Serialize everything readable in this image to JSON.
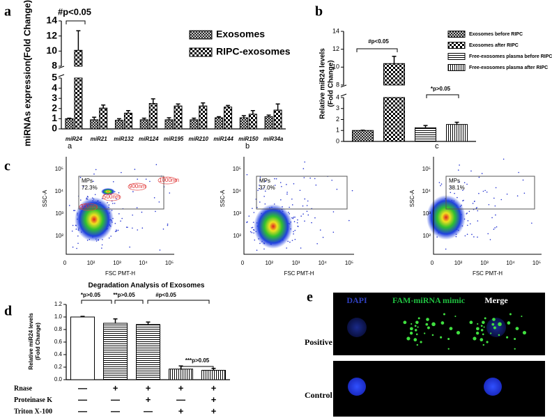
{
  "chart_data": [
    {
      "type": "bar",
      "panel": "a",
      "ylabel": [
        "miRNAs expression(Fold Change)"
      ],
      "categories": [
        "miR24",
        "miR21",
        "miR132",
        "miR124",
        "miR195",
        "miR210",
        "miR144",
        "miR150",
        "miR34a"
      ],
      "series": [
        {
          "name": "Exosomes",
          "color": "#000000",
          "pattern": "crosshatch",
          "values": [
            1.0,
            0.9,
            0.85,
            0.9,
            0.9,
            0.9,
            1.1,
            1.1,
            1.2
          ],
          "errors": [
            0.05,
            0.25,
            0.15,
            0.15,
            0.2,
            0.15,
            0.1,
            0.2,
            0.15
          ]
        },
        {
          "name": "RIPC-exosomes",
          "color": "#000000",
          "pattern": "checker",
          "values": [
            10.1,
            2.05,
            1.55,
            2.5,
            2.25,
            2.25,
            2.15,
            1.45,
            1.85
          ],
          "errors": [
            2.6,
            0.3,
            0.25,
            0.45,
            0.2,
            0.3,
            0.15,
            0.35,
            0.6
          ]
        }
      ],
      "ylim": [
        0,
        14
      ],
      "ybreak": [
        5,
        8
      ],
      "yticks": [
        0,
        1,
        2,
        3,
        4,
        5,
        8,
        10,
        12,
        14
      ],
      "annotations": [
        "#p<0.05"
      ]
    },
    {
      "type": "bar",
      "panel": "b",
      "ylabel": [
        "Relative miR24 levels",
        "(Fold Change)"
      ],
      "categories": [
        null
      ],
      "series": [
        {
          "name": "Exosomes before RIPC",
          "color": "#000000",
          "pattern": "crosshatch",
          "values": [
            1.0
          ],
          "errors": [
            0.02
          ]
        },
        {
          "name": "Exosomes after RIPC",
          "color": "#000000",
          "pattern": "checker",
          "values": [
            10.4
          ],
          "errors": [
            0.8
          ]
        },
        {
          "name": "Free-exosomes plasma before RIPC",
          "color": "#000000",
          "pattern": "hstripe",
          "values": [
            1.25
          ],
          "errors": [
            0.2
          ]
        },
        {
          "name": "Free-exosomes plasma after RIPC",
          "color": "#000000",
          "pattern": "vstripe",
          "values": [
            1.55
          ],
          "errors": [
            0.2
          ]
        }
      ],
      "ylim": [
        0,
        14
      ],
      "ybreak": [
        4,
        8
      ],
      "yticks": [
        0,
        1,
        2,
        3,
        4,
        8,
        10,
        12,
        14
      ],
      "annotations": [
        "#p<0.05",
        "*p>0.05"
      ]
    },
    {
      "type": "bar",
      "panel": "d",
      "title": "Degradation Analysis of Exosomes",
      "ylabel": [
        "Relative miR24 levels",
        "(Fold Change)"
      ],
      "categories": [
        null,
        null,
        null,
        null,
        null
      ],
      "values": [
        1.0,
        0.9,
        0.88,
        0.17,
        0.15
      ],
      "errors": [
        0.01,
        0.07,
        0.04,
        0.05,
        0.03
      ],
      "color": "#000000",
      "patterns": [
        "plain",
        "hstripe",
        "hstripe",
        "vstripe",
        "vstripe"
      ],
      "ylim": [
        0,
        1.2
      ],
      "yticks": [
        {
          "value": 0,
          "label": "0.0"
        },
        0.2,
        0.4,
        0.6,
        0.8,
        {
          "value": 1,
          "label": "1.0"
        },
        1.2
      ],
      "annotations": [
        "*p>0.05",
        "**p>0.05",
        "#p<0.05",
        "***p>0.05"
      ],
      "treatments": [
        {
          "label": "Rnase",
          "signs": [
            "—",
            "+",
            "+",
            "+",
            "+"
          ]
        },
        {
          "label": "Proteinase K",
          "signs": [
            "—",
            "—",
            "+",
            "—",
            "+"
          ]
        },
        {
          "label": "Triton X-100",
          "signs": [
            "—",
            "—",
            "—",
            "+",
            "+"
          ]
        }
      ]
    }
  ],
  "flow_panel": {
    "label": "c",
    "xlabel": "FSC PMT-H",
    "ylabel": "SSC-A",
    "xtick_labels": [
      "0",
      "10²",
      "10³",
      "10⁴",
      "10⁵"
    ],
    "ytick_labels": [
      "10⁵",
      "10⁴",
      "10³",
      "10²"
    ],
    "plots": [
      {
        "label": "a",
        "gate": "MPs",
        "percent": "72.3%",
        "size_labels": [
          "300nm",
          "500nm",
          "900nm",
          "1000nm"
        ]
      },
      {
        "label": "b",
        "gate": "MPs",
        "percent": "37.0%"
      },
      {
        "label": "c",
        "gate": "MPs",
        "percent": "38.1%"
      }
    ]
  },
  "microscopy_panel": {
    "label": "e",
    "columns": [
      "DAPI",
      "FAM-miRNA mimic",
      "Merge"
    ],
    "rows": [
      "Positive",
      "Control"
    ]
  }
}
